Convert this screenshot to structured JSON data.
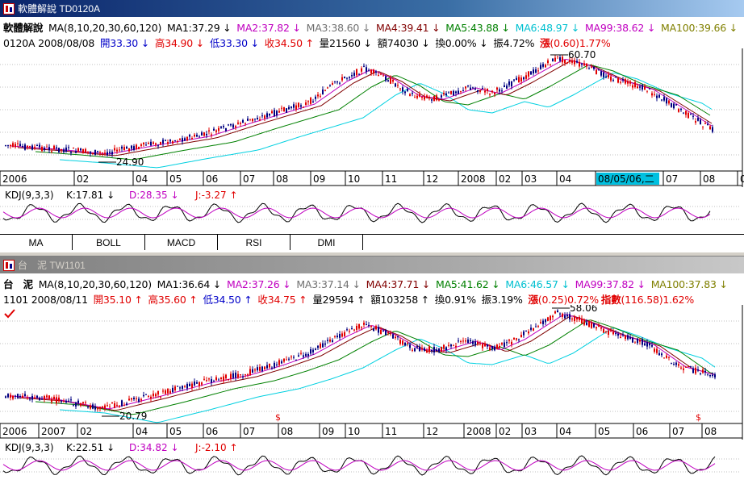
{
  "pane1": {
    "title": "軟體解說 TD0120A",
    "line1": {
      "name": "軟體解說",
      "ma_def": "MA(8,10,20,30,60,120)",
      "ma1": "MA1:37.29 ↓",
      "ma2": "MA2:37.82 ↓",
      "ma3": "MA3:38.60 ↓",
      "ma4": "MA4:39.41 ↓",
      "ma5": "MA5:43.88 ↓",
      "ma6": "MA6:48.97 ↓",
      "ma99": "MA99:38.62 ↓",
      "ma100": "MA100:39.66 ↓"
    },
    "line2": {
      "code_date": "0120A 2008/08/08",
      "open": "開33.30 ↓",
      "high": "高34.90 ↓",
      "low": "低33.30 ↓",
      "close": "收34.50 ↑",
      "volume": "量21560 ↓",
      "amount": "額74030 ↓",
      "turnover": "換0.00% ↓",
      "amplitude": "振4.72%",
      "change_label": "漲",
      "change_value": "(0.60)",
      "change_pct": "1.77%"
    },
    "high_label": "60.70",
    "low_label": "24.90",
    "x_axis": [
      "2006",
      "02",
      "04",
      "05",
      "06",
      "07",
      "08",
      "09",
      "10",
      "11",
      "12",
      "2008",
      "02",
      "03",
      "04",
      "08/05/06,二",
      "07",
      "08",
      "0"
    ],
    "kdj": {
      "def": "KDJ(9,3,3)",
      "k": "K:17.81 ↓",
      "d": "D:28.35 ↓",
      "j": "J:-3.27 ↑"
    },
    "tabs": [
      "MA",
      "BOLL",
      "MACD",
      "RSI",
      "DMI"
    ]
  },
  "pane2": {
    "title": "台　泥 TW1101",
    "line1": {
      "name": "台　泥",
      "ma_def": "MA(8,10,20,30,60,120)",
      "ma1": "MA1:36.64 ↓",
      "ma2": "MA2:37.26 ↓",
      "ma3": "MA3:37.14 ↓",
      "ma4": "MA4:37.71 ↓",
      "ma5": "MA5:41.62 ↓",
      "ma6": "MA6:46.57 ↓",
      "ma99": "MA99:37.82 ↓",
      "ma100": "MA100:37.83 ↓"
    },
    "line2": {
      "code_date": "1101 2008/08/11",
      "open": "開35.10 ↑",
      "high": "高35.60 ↑",
      "low": "低34.50 ↑",
      "close": "收34.75 ↑",
      "volume": "量29594 ↑",
      "amount": "額103258 ↑",
      "turnover": "換0.91%",
      "amplitude": "振3.19%",
      "change_label": "漲",
      "change_value": "(0.25)0.72%",
      "index_label": "指數",
      "index_value": "(116.58)1.62%"
    },
    "high_label": "58.06",
    "low_label": "20.79",
    "signal_mark": "$",
    "x_axis": [
      "2006",
      "2007",
      "02",
      "04",
      "05",
      "06",
      "07",
      "08",
      "09",
      "10",
      "11",
      "12",
      "2008",
      "02",
      "03",
      "04",
      "05",
      "06",
      "07",
      "08"
    ],
    "kdj": {
      "def": "KDJ(9,3,3)",
      "k": "K:22.51 ↓",
      "d": "D:34.82 ↓",
      "j": "J:-2.10 ↑"
    }
  },
  "colors": {
    "candle_up": "#e00000",
    "candle_down": "#000080",
    "ma_cyan": "#00d0e0",
    "ma_green": "#008000",
    "ma_maroon": "#800000",
    "ma_magenta": "#c000c0",
    "kdj_k": "#000000",
    "kdj_d": "#c000c0",
    "grid": "#bfbfbf"
  },
  "icons": [
    "app-icon",
    "check-icon"
  ]
}
